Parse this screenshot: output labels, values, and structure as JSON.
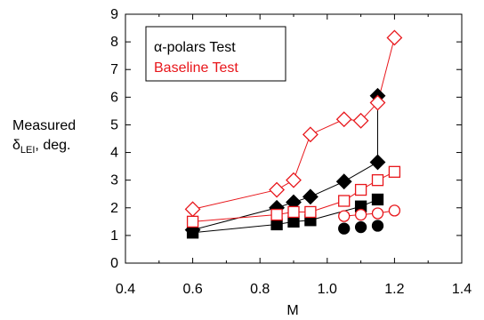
{
  "chart_data": {
    "type": "scatter",
    "xlabel": "M",
    "ylabel": {
      "line1": "Measured",
      "delta": "δ",
      "sub": "LEI",
      "rest": ", deg."
    },
    "xlim": [
      0.4,
      1.4
    ],
    "ylim": [
      0,
      9
    ],
    "xticks": [
      "0.4",
      "0.6",
      "0.8",
      "1.0",
      "1.2",
      "1.4"
    ],
    "yticks": [
      "0",
      "1",
      "2",
      "3",
      "4",
      "5",
      "6",
      "7",
      "8",
      "9"
    ],
    "grid": false,
    "legend_position": "top-left",
    "legend": [
      {
        "name": "α-polars Test",
        "color": "#000000"
      },
      {
        "name": "Baseline Test",
        "color": "#e8161b"
      }
    ],
    "series": [
      {
        "group": "α-polars Test",
        "color": "#000000",
        "marker": "diamond",
        "filled": true,
        "connected": true,
        "x": [
          0.6,
          0.85,
          0.9,
          0.95,
          1.05,
          1.15,
          1.15
        ],
        "y": [
          1.2,
          2.0,
          2.2,
          2.4,
          2.95,
          3.65,
          6.05
        ]
      },
      {
        "group": "α-polars Test",
        "color": "#000000",
        "marker": "square",
        "filled": true,
        "connected": true,
        "x": [
          0.6,
          0.85,
          0.9,
          0.95,
          1.1,
          1.15
        ],
        "y": [
          1.1,
          1.4,
          1.5,
          1.55,
          2.05,
          2.3
        ]
      },
      {
        "group": "α-polars Test",
        "color": "#000000",
        "marker": "circle",
        "filled": true,
        "connected": false,
        "x": [
          1.05,
          1.1,
          1.15
        ],
        "y": [
          1.25,
          1.3,
          1.35
        ]
      },
      {
        "group": "Baseline Test",
        "color": "#e8161b",
        "marker": "diamond",
        "filled": false,
        "connected": true,
        "x": [
          0.6,
          0.85,
          0.9,
          0.95,
          1.05,
          1.1,
          1.15,
          1.2
        ],
        "y": [
          1.95,
          2.65,
          3.0,
          4.65,
          5.2,
          5.15,
          5.8,
          8.15
        ]
      },
      {
        "group": "Baseline Test",
        "color": "#e8161b",
        "marker": "square",
        "filled": false,
        "connected": true,
        "x": [
          0.6,
          0.85,
          0.9,
          0.95,
          1.05,
          1.1,
          1.15,
          1.2
        ],
        "y": [
          1.5,
          1.75,
          1.85,
          1.85,
          2.25,
          2.65,
          3.0,
          3.3
        ]
      },
      {
        "group": "Baseline Test",
        "color": "#e8161b",
        "marker": "circle",
        "filled": false,
        "connected": true,
        "x": [
          1.05,
          1.1,
          1.15,
          1.2
        ],
        "y": [
          1.7,
          1.75,
          1.8,
          1.9
        ]
      }
    ]
  }
}
